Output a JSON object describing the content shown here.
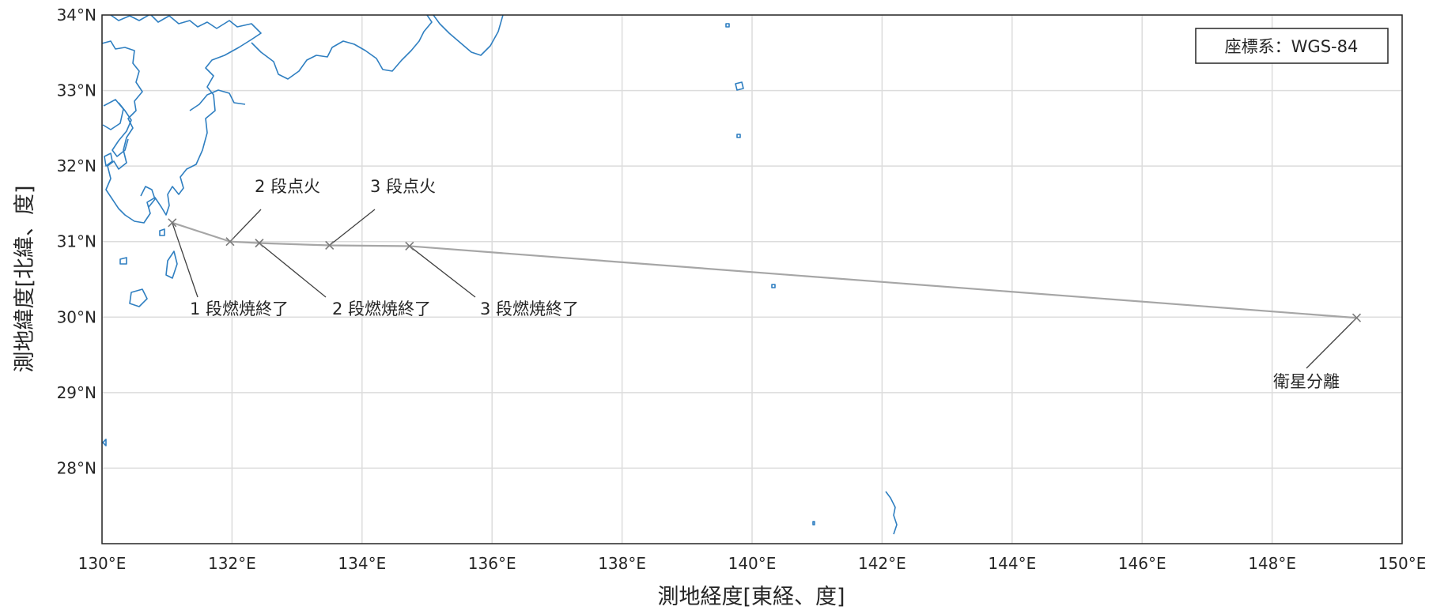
{
  "map": {
    "legend_text": "座標系：WGS-84",
    "xlabel": "測地経度[東経、度]",
    "ylabel": "測地緯度[北緯、度]",
    "x_ticks": [
      "130°E",
      "132°E",
      "134°E",
      "136°E",
      "138°E",
      "140°E",
      "142°E",
      "144°E",
      "146°E",
      "148°E",
      "150°E"
    ],
    "y_ticks": [
      "34°N",
      "33°N",
      "32°N",
      "31°N",
      "30°N",
      "29°N",
      "28°N"
    ],
    "colors": {
      "coastline": "#2f7fc1",
      "trajectory": "#a6a6a6",
      "grid": "#dcdcdc"
    }
  },
  "chart_data": {
    "type": "line",
    "xlim": [
      130,
      150
    ],
    "ylim": [
      27,
      34
    ],
    "grid": true,
    "legend_placement": "top-right",
    "trajectory": {
      "lon": [
        131.08,
        131.97,
        132.42,
        133.5,
        134.73,
        149.3
      ],
      "lat": [
        31.25,
        31.0,
        30.98,
        30.95,
        30.94,
        29.99
      ]
    },
    "events": [
      {
        "label": "1 段燃焼終了",
        "lon": 131.08,
        "lat": 31.25
      },
      {
        "label": "2 段点火",
        "lon": 131.97,
        "lat": 31.0
      },
      {
        "label": "2 段燃焼終了",
        "lon": 132.42,
        "lat": 30.98
      },
      {
        "label": "3 段点火",
        "lon": 133.5,
        "lat": 30.95
      },
      {
        "label": "3 段燃焼終了",
        "lon": 134.73,
        "lat": 30.94
      },
      {
        "label": "衛星分離",
        "lon": 149.3,
        "lat": 29.99
      }
    ]
  }
}
